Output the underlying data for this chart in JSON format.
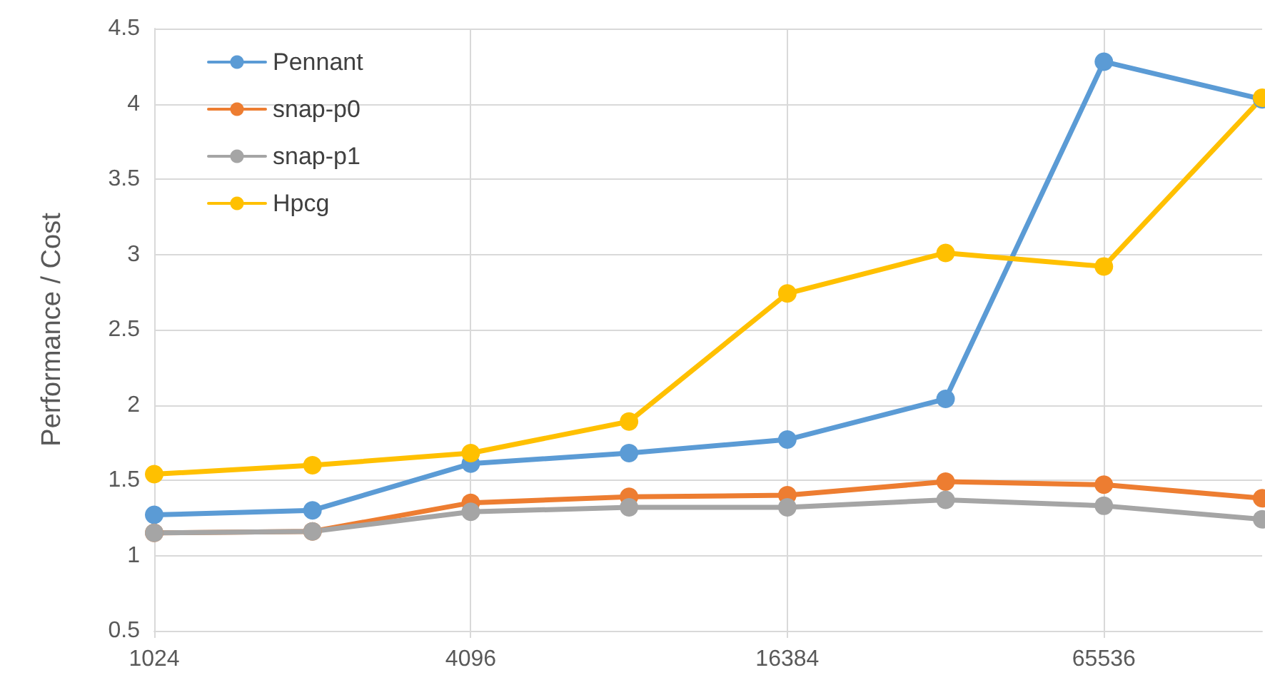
{
  "chart_data": {
    "type": "line",
    "ylabel": "Performance / Cost",
    "log": "x",
    "x": [
      1024,
      2048,
      4096,
      8192,
      16384,
      32768,
      65536,
      131072
    ],
    "xlim": [
      1024,
      131072
    ],
    "xticks": [
      1024,
      4096,
      16384,
      65536
    ],
    "ylim": [
      0.5,
      4.5
    ],
    "yticks": [
      0.5,
      1,
      1.5,
      2,
      2.5,
      3,
      3.5,
      4,
      4.5
    ],
    "grid": true,
    "legend": "top left",
    "marker": "circle",
    "line_style": "solid",
    "series": [
      {
        "name": "Pennant",
        "color": "#5b9bd5",
        "values": [
          1.27,
          1.3,
          1.61,
          1.68,
          1.77,
          2.04,
          4.28,
          4.03
        ]
      },
      {
        "name": "snap-p0",
        "color": "#ed7d31",
        "values": [
          1.15,
          1.16,
          1.35,
          1.39,
          1.4,
          1.49,
          1.47,
          1.38
        ]
      },
      {
        "name": "snap-p1",
        "color": "#a5a5a5",
        "values": [
          1.15,
          1.16,
          1.29,
          1.32,
          1.32,
          1.37,
          1.33,
          1.24
        ]
      },
      {
        "name": "Hpcg",
        "color": "#ffc000",
        "values": [
          1.54,
          1.6,
          1.68,
          1.89,
          2.74,
          3.01,
          2.92,
          4.04
        ]
      }
    ]
  }
}
